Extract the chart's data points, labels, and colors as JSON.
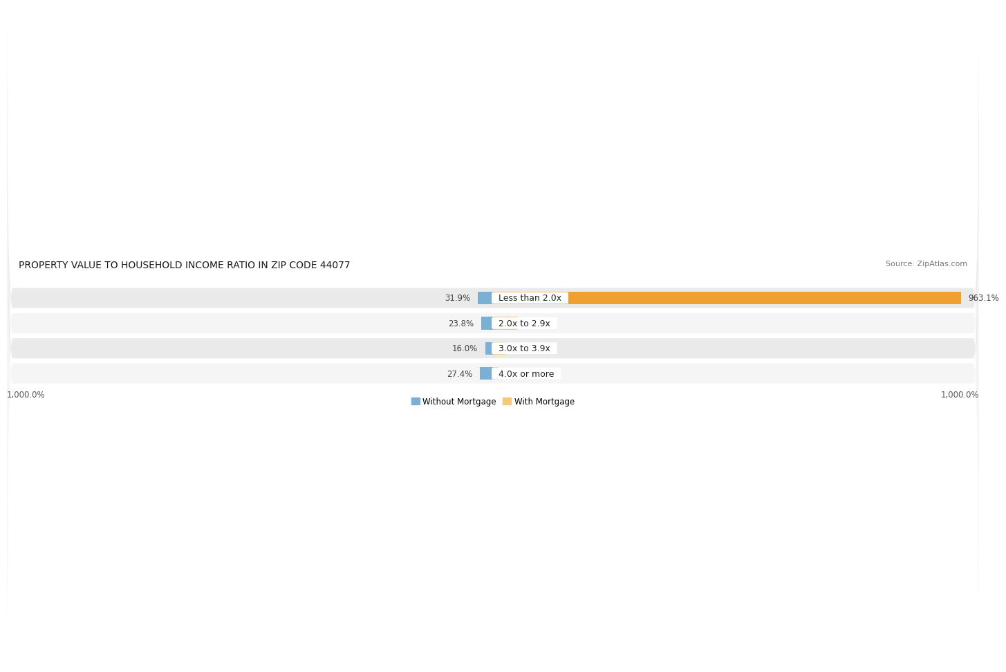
{
  "title": "PROPERTY VALUE TO HOUSEHOLD INCOME RATIO IN ZIP CODE 44077",
  "source": "Source: ZipAtlas.com",
  "categories": [
    "Less than 2.0x",
    "2.0x to 2.9x",
    "3.0x to 3.9x",
    "4.0x or more"
  ],
  "without_mortgage": [
    31.9,
    23.8,
    16.0,
    27.4
  ],
  "with_mortgage": [
    963.1,
    49.8,
    25.0,
    11.2
  ],
  "color_without": "#7bafd4",
  "color_with": "#f5c97a",
  "color_with_row1": "#f0a030",
  "row_colors": [
    "#eaeaea",
    "#f5f5f5",
    "#eaeaea",
    "#f5f5f5"
  ],
  "xlim_left": -1000,
  "xlim_right": 1000,
  "xlabel_left": "1,000.0%",
  "xlabel_right": "1,000.0%",
  "legend_without": "Without Mortgage",
  "legend_with": "With Mortgage",
  "title_fontsize": 10,
  "source_fontsize": 8,
  "label_fontsize": 8.5,
  "cat_label_fontsize": 9
}
